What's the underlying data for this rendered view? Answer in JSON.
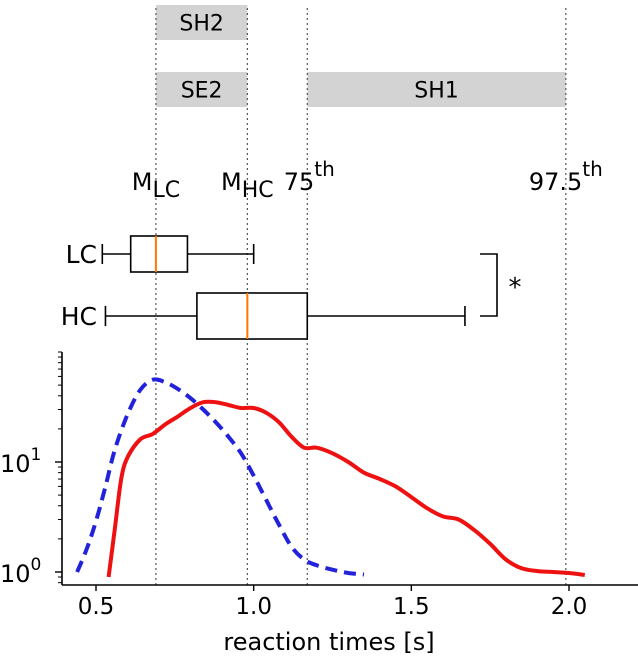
{
  "chart_data": {
    "type": "line",
    "xlabel": "reaction times [s]",
    "ylabel": "",
    "xlim": [
      0.37,
      2.22
    ],
    "ylim_log10": [
      -0.08,
      1.88
    ],
    "x_ticks": [
      {
        "value": 0.5,
        "label": "0.5"
      },
      {
        "value": 1.0,
        "label": "1.0"
      },
      {
        "value": 1.5,
        "label": "1.5"
      },
      {
        "value": 2.0,
        "label": "2.0"
      }
    ],
    "y_ticks": [
      {
        "value": 1,
        "base": "10",
        "exp": "0"
      },
      {
        "value": 10,
        "base": "10",
        "exp": "1"
      }
    ],
    "series": [
      {
        "name": "LC",
        "color": "#2222dd",
        "dash": "dashed",
        "x": [
          0.44,
          0.47,
          0.5,
          0.53,
          0.56,
          0.6,
          0.64,
          0.68,
          0.72,
          0.76,
          0.8,
          0.84,
          0.88,
          0.92,
          0.96,
          1.0,
          1.04,
          1.08,
          1.12,
          1.16,
          1.2,
          1.25,
          1.3,
          1.35
        ],
        "y": [
          1.0,
          1.6,
          2.9,
          6.0,
          13,
          27,
          45,
          56,
          53,
          46,
          38,
          30,
          23,
          17,
          12,
          7.5,
          4.5,
          2.7,
          1.7,
          1.3,
          1.15,
          1.05,
          0.98,
          0.95
        ]
      },
      {
        "name": "HC",
        "color": "#ee1111",
        "dash": "solid",
        "x": [
          0.54,
          0.56,
          0.58,
          0.6,
          0.64,
          0.68,
          0.72,
          0.76,
          0.8,
          0.84,
          0.88,
          0.92,
          0.96,
          1.0,
          1.04,
          1.08,
          1.12,
          1.16,
          1.2,
          1.25,
          1.3,
          1.35,
          1.4,
          1.45,
          1.5,
          1.55,
          1.6,
          1.65,
          1.7,
          1.75,
          1.8,
          1.85,
          1.9,
          1.95,
          2.0,
          2.05
        ],
        "y": [
          0.9,
          2.5,
          7.0,
          11,
          16,
          18,
          22,
          26,
          31,
          35,
          35,
          33,
          31,
          31,
          28,
          23,
          17,
          13.5,
          13.5,
          12,
          10,
          8.0,
          7.0,
          6.0,
          4.8,
          3.8,
          3.2,
          3.0,
          2.4,
          1.8,
          1.3,
          1.08,
          1.02,
          1.0,
          0.98,
          0.94
        ]
      }
    ],
    "reference_lines": [
      {
        "name": "M_LC",
        "x": 0.69,
        "base": "M",
        "sub": "LC",
        "sup": ""
      },
      {
        "name": "M_HC",
        "x": 0.98,
        "base": "M",
        "sub": "HC",
        "sup": ""
      },
      {
        "name": "75th",
        "x": 1.17,
        "base": "75",
        "sub": "",
        "sup": "th"
      },
      {
        "name": "97.5th",
        "x": 1.99,
        "base": "97.5",
        "sub": "",
        "sup": "th"
      }
    ],
    "boxplots": [
      {
        "label": "LC",
        "whisker_low": 0.52,
        "q1": 0.61,
        "median": 0.69,
        "q3": 0.79,
        "whisker_high": 1.0
      },
      {
        "label": "HC",
        "whisker_low": 0.53,
        "q1": 0.82,
        "median": 0.98,
        "q3": 1.17,
        "whisker_high": 1.67
      }
    ],
    "median_color": "#ff7700",
    "significance": "*",
    "bands": [
      {
        "label": "SH2",
        "x_start": 0.69,
        "x_end": 0.98,
        "row": 0
      },
      {
        "label": "SE2",
        "x_start": 0.69,
        "x_end": 0.98,
        "row": 1
      },
      {
        "label": "SH1",
        "x_start": 1.17,
        "x_end": 1.99,
        "row": 1
      }
    ],
    "band_color": "#d3d3d3"
  }
}
